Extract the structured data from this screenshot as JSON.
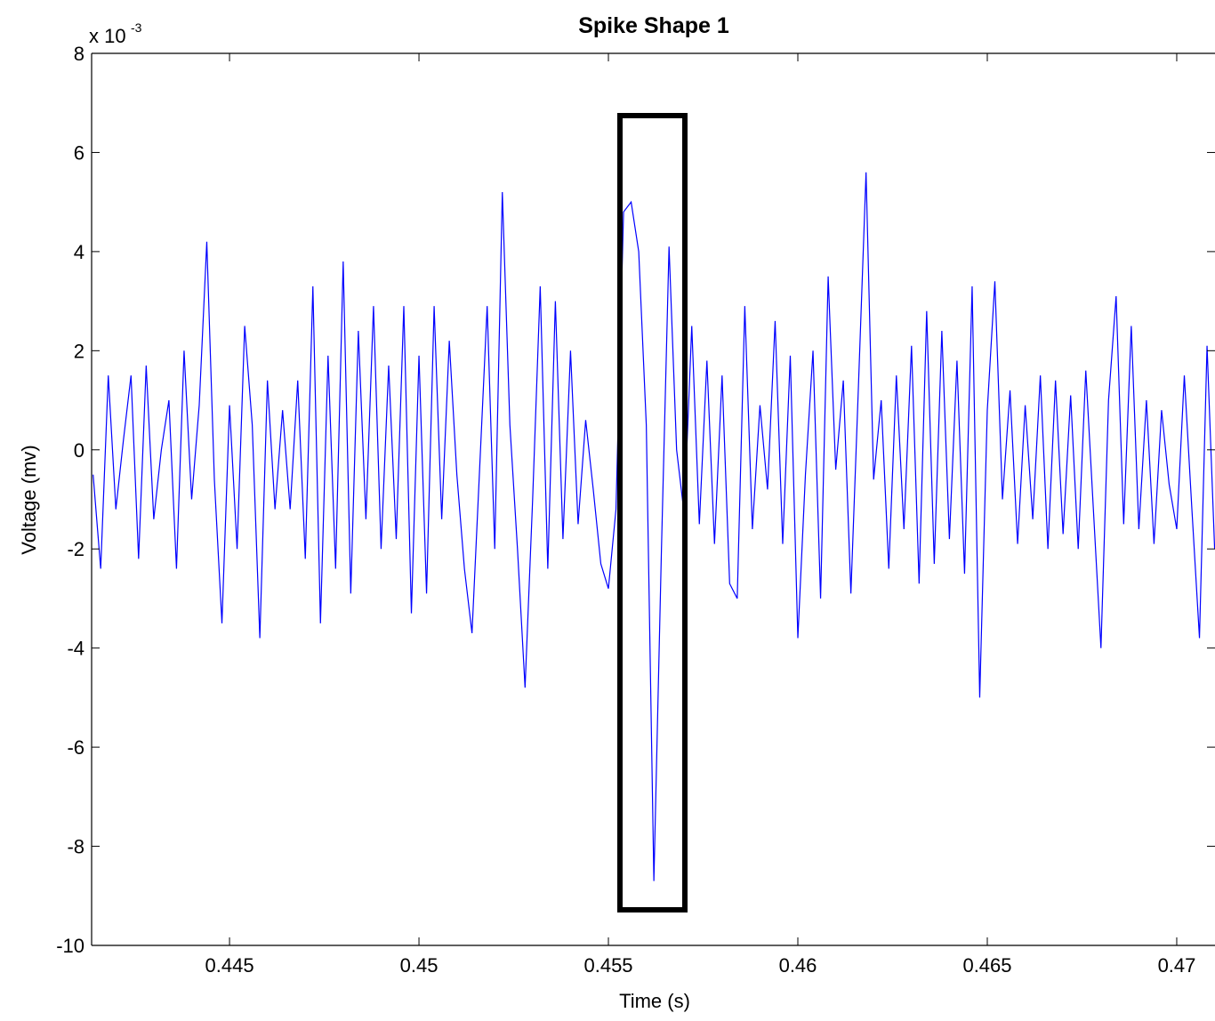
{
  "chart_data": {
    "type": "line",
    "title": "Spike Shape 1",
    "x_label": "Time (s)",
    "y_label": "Voltage (mv)",
    "y_multiplier": "x 10",
    "y_multiplier_exponent": "-3",
    "xlim": [
      0.44136,
      0.47101
    ],
    "ylim": [
      -10,
      8
    ],
    "xticks": [
      0.445,
      0.45,
      0.455,
      0.46,
      0.465,
      0.47
    ],
    "yticks": [
      -10,
      -8,
      -6,
      -4,
      -2,
      0,
      2,
      4,
      6,
      8
    ],
    "grid": false,
    "x": [
      0.4414,
      0.4416,
      0.4418,
      0.442,
      0.4422,
      0.4424,
      0.4426,
      0.4428,
      0.443,
      0.4432,
      0.4434,
      0.4436,
      0.4438,
      0.444,
      0.4442,
      0.4444,
      0.4446,
      0.4448,
      0.445,
      0.4452,
      0.4454,
      0.4456,
      0.4458,
      0.446,
      0.4462,
      0.4464,
      0.4466,
      0.4468,
      0.447,
      0.4472,
      0.4474,
      0.4476,
      0.4478,
      0.448,
      0.4482,
      0.4484,
      0.4486,
      0.4488,
      0.449,
      0.4492,
      0.4494,
      0.4496,
      0.4498,
      0.45,
      0.4502,
      0.4504,
      0.4506,
      0.4508,
      0.451,
      0.4512,
      0.4514,
      0.4516,
      0.4518,
      0.452,
      0.4522,
      0.4524,
      0.4526,
      0.4528,
      0.453,
      0.4532,
      0.4534,
      0.4536,
      0.4538,
      0.454,
      0.4542,
      0.4544,
      0.4546,
      0.4548,
      0.455,
      0.4552,
      0.4554,
      0.4556,
      0.4558,
      0.456,
      0.4562,
      0.4564,
      0.4566,
      0.4568,
      0.457,
      0.4572,
      0.4574,
      0.4576,
      0.4578,
      0.458,
      0.4582,
      0.4584,
      0.4586,
      0.4588,
      0.459,
      0.4592,
      0.4594,
      0.4596,
      0.4598,
      0.46,
      0.4602,
      0.4604,
      0.4606,
      0.4608,
      0.461,
      0.4612,
      0.4614,
      0.4616,
      0.4618,
      0.462,
      0.4622,
      0.4624,
      0.4626,
      0.4628,
      0.463,
      0.4632,
      0.4634,
      0.4636,
      0.4638,
      0.464,
      0.4642,
      0.4644,
      0.4646,
      0.4648,
      0.465,
      0.4652,
      0.4654,
      0.4656,
      0.4658,
      0.466,
      0.4662,
      0.4664,
      0.4666,
      0.4668,
      0.467,
      0.4672,
      0.4674,
      0.4676,
      0.4678,
      0.468,
      0.4682,
      0.4684,
      0.4686,
      0.4688,
      0.469,
      0.4692,
      0.4694,
      0.4696,
      0.4698,
      0.47,
      0.4702,
      0.4704,
      0.4706,
      0.4708,
      0.471
    ],
    "series": [
      {
        "color": "#0000ff",
        "values": [
          -0.5,
          -2.4,
          1.5,
          -1.2,
          0.2,
          1.5,
          -2.2,
          1.7,
          -1.4,
          0.0,
          1.0,
          -2.4,
          2.0,
          -1.0,
          0.9,
          4.2,
          -0.6,
          -3.5,
          0.9,
          -2.0,
          2.5,
          0.5,
          -3.8,
          1.4,
          -1.2,
          0.8,
          -1.2,
          1.4,
          -2.2,
          3.3,
          -3.5,
          1.9,
          -2.4,
          3.8,
          -2.9,
          2.4,
          -1.4,
          2.9,
          -2.0,
          1.7,
          -1.8,
          2.9,
          -3.3,
          1.9,
          -2.9,
          2.9,
          -1.4,
          2.2,
          -0.5,
          -2.4,
          -3.7,
          -0.4,
          2.9,
          -2.0,
          5.2,
          0.5,
          -2.0,
          -4.8,
          -1.0,
          3.3,
          -2.4,
          3.0,
          -1.8,
          2.0,
          -1.5,
          0.6,
          -0.8,
          -2.3,
          -2.8,
          -1.2,
          4.8,
          5.0,
          4.0,
          0.5,
          -8.7,
          -2.0,
          4.1,
          0.0,
          -1.3,
          2.5,
          -1.5,
          1.8,
          -1.9,
          1.5,
          -2.7,
          -3.0,
          2.9,
          -1.6,
          0.9,
          -0.8,
          2.6,
          -1.9,
          1.9,
          -3.8,
          -0.5,
          2.0,
          -3.0,
          3.5,
          -0.4,
          1.4,
          -2.9,
          1.3,
          5.6,
          -0.6,
          1.0,
          -2.4,
          1.5,
          -1.6,
          2.1,
          -2.7,
          2.8,
          -2.3,
          2.4,
          -1.8,
          1.8,
          -2.5,
          3.3,
          -5.0,
          0.8,
          3.4,
          -1.0,
          1.2,
          -1.9,
          0.9,
          -1.4,
          1.5,
          -2.0,
          1.4,
          -1.7,
          1.1,
          -2.0,
          1.6,
          -1.2,
          -4.0,
          1.0,
          3.1,
          -1.5,
          2.5,
          -1.6,
          1.0,
          -1.9,
          0.8,
          -0.7,
          -1.6,
          1.5,
          -1.2,
          -3.8,
          2.1,
          -2.0
        ]
      }
    ]
  }
}
